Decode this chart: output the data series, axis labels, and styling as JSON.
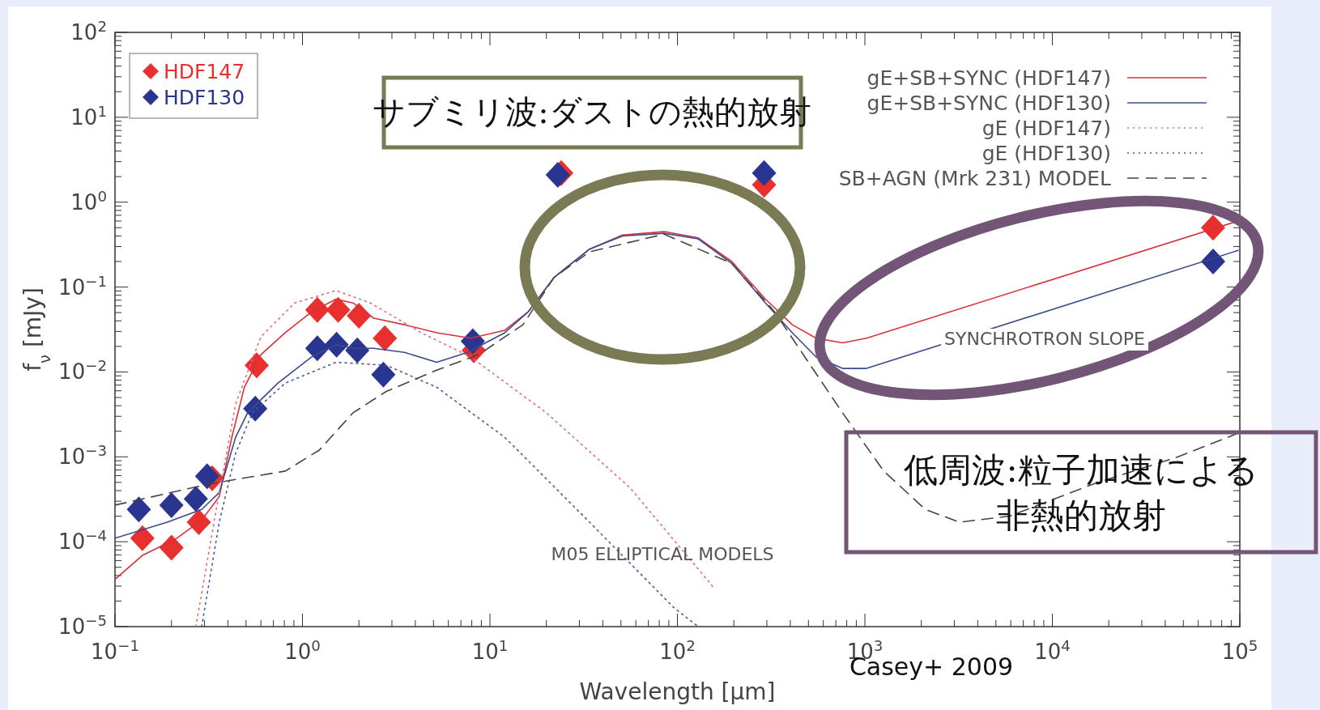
{
  "chart_data": {
    "type": "line",
    "xlabel": "Wavelength [μm]",
    "ylabel": "f$_{ν}$ [mJy]",
    "log": "xy",
    "xlim": [
      0.1,
      100000
    ],
    "ylim": [
      1e-05,
      100
    ],
    "xticks": [
      {
        "value": 0.1,
        "label": "10$^{−1}$"
      },
      {
        "value": 1,
        "label": "10$^{0}$"
      },
      {
        "value": 10,
        "label": "10$^{1}$"
      },
      {
        "value": 100,
        "label": "10$^{2}$"
      },
      {
        "value": 1000,
        "label": "10$^{3}$"
      },
      {
        "value": 10000,
        "label": "10$^{4}$"
      },
      {
        "value": 100000,
        "label": "10$^{5}$"
      }
    ],
    "yticks": [
      {
        "value": 1e-05,
        "label": "10$^{−5}$"
      },
      {
        "value": 0.0001,
        "label": "10$^{−4}$"
      },
      {
        "value": 0.001,
        "label": "10$^{−3}$"
      },
      {
        "value": 0.01,
        "label": "10$^{−2}$"
      },
      {
        "value": 0.1,
        "label": "10$^{−1}$"
      },
      {
        "value": 1,
        "label": "10$^{0}$"
      },
      {
        "value": 10,
        "label": "10$^{1}$"
      },
      {
        "value": 100,
        "label": "10$^{2}$"
      }
    ],
    "legend": "top right",
    "series": [
      {
        "name": "gE+SB+SYNC (HDF147)",
        "line_style": "solid",
        "color": "#d9303a",
        "x": [
          0.1,
          0.14,
          0.21,
          0.29,
          0.36,
          0.42,
          0.49,
          0.6,
          0.81,
          1.12,
          1.51,
          1.86,
          2.4,
          3.5,
          5.2,
          7.9,
          12,
          16,
          22,
          34,
          51,
          85,
          129,
          195,
          295,
          410,
          550,
          760,
          1020,
          98000
        ],
        "values": [
          3.6e-05,
          6.9e-05,
          0.000107,
          0.00018,
          0.00034,
          0.0017,
          0.0066,
          0.016,
          0.029,
          0.051,
          0.072,
          0.065,
          0.043,
          0.036,
          0.029,
          0.025,
          0.031,
          0.051,
          0.13,
          0.28,
          0.41,
          0.45,
          0.38,
          0.2,
          0.072,
          0.036,
          0.025,
          0.022,
          0.025,
          0.6
        ]
      },
      {
        "name": "gE+SB+SYNC (HDF130)",
        "line_style": "solid",
        "color": "#3a4a8c",
        "x": [
          0.1,
          0.19,
          0.29,
          0.36,
          0.44,
          0.51,
          0.74,
          1.12,
          1.51,
          1.86,
          2.4,
          3.5,
          5.2,
          7.6,
          12,
          16,
          22,
          34,
          51,
          85,
          129,
          195,
          295,
          410,
          550,
          760,
          1020,
          98000
        ],
        "values": [
          0.00011,
          0.00017,
          0.00024,
          0.00038,
          0.0017,
          0.0033,
          0.0074,
          0.015,
          0.021,
          0.019,
          0.019,
          0.017,
          0.013,
          0.017,
          0.029,
          0.051,
          0.13,
          0.28,
          0.4,
          0.43,
          0.37,
          0.19,
          0.065,
          0.029,
          0.015,
          0.011,
          0.011,
          0.27
        ]
      },
      {
        "name": "gE (HDF147)",
        "line_style": "dotted",
        "color": "#e0707a",
        "x": [
          0.27,
          0.35,
          0.44,
          0.6,
          0.91,
          1.51,
          2.3,
          4.3,
          7.9,
          20,
          56,
          158
        ],
        "values": [
          1e-05,
          0.00027,
          0.0042,
          0.026,
          0.065,
          0.091,
          0.065,
          0.029,
          0.015,
          0.0033,
          0.00043,
          2.8e-05
        ]
      },
      {
        "name": "gE (HDF130)",
        "line_style": "dotted",
        "color": "#4a5a9c",
        "x": [
          0.29,
          0.36,
          0.44,
          0.54,
          0.81,
          1.51,
          2.8,
          5.2,
          12,
          34,
          95,
          129
        ],
        "values": [
          1e-05,
          0.00017,
          0.0011,
          0.0033,
          0.0074,
          0.013,
          0.012,
          0.0066,
          0.0017,
          0.00017,
          1.7e-05,
          1e-05
        ]
      },
      {
        "name": "SB+AGN (Mrk 231) MODEL",
        "line_style": "dashed",
        "color": "#444444",
        "x": [
          0.1,
          0.32,
          0.81,
          1.23,
          1.86,
          2.8,
          5.2,
          8.7,
          15,
          22,
          34,
          85,
          195,
          330,
          500,
          760,
          1260,
          2100,
          3200,
          5900,
          16600,
          46800,
          98000
        ],
        "values": [
          0.00027,
          0.00048,
          0.00068,
          0.0012,
          0.0033,
          0.0059,
          0.0105,
          0.016,
          0.036,
          0.13,
          0.26,
          0.42,
          0.19,
          0.051,
          0.013,
          0.0033,
          0.00068,
          0.00024,
          0.00017,
          0.0002,
          0.00048,
          0.001,
          0.0019
        ]
      },
      {
        "name": "HDF147",
        "type": "scatter",
        "marker": "diamond",
        "color": "#e8302f",
        "x": [
          0.14,
          0.2,
          0.28,
          0.33,
          0.57,
          1.2,
          1.55,
          2.0,
          2.75,
          8.2,
          24,
          290,
          72000
        ],
        "values": [
          0.00011,
          8.5e-05,
          0.00017,
          0.00056,
          0.012,
          0.054,
          0.054,
          0.046,
          0.025,
          0.018,
          2.2,
          1.6,
          0.5
        ]
      },
      {
        "name": "HDF130",
        "type": "scatter",
        "marker": "diamond",
        "color": "#2a3591",
        "x": [
          0.134,
          0.2,
          0.27,
          0.31,
          0.56,
          1.2,
          1.52,
          1.96,
          2.7,
          8.1,
          23,
          290,
          72000
        ],
        "values": [
          0.00024,
          0.00027,
          0.00032,
          0.00059,
          0.0037,
          0.019,
          0.021,
          0.018,
          0.0093,
          0.023,
          2.1,
          2.2,
          0.2
        ]
      }
    ],
    "annotations": [
      "サブミリ波:ダストの熱的放射",
      "低周波:粒子加速による非熱的放射",
      "M05 ELLIPTICAL MODELS",
      "SYNCHROTRON SLOPE",
      "Casey+ 2009"
    ]
  }
}
